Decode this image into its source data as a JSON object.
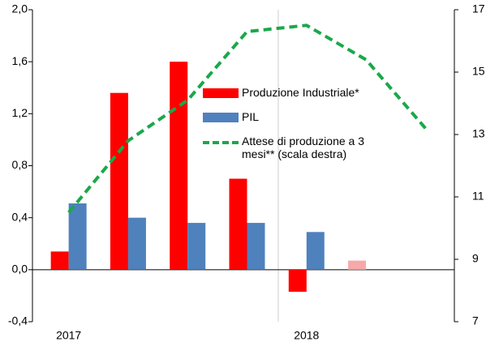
{
  "chart_data": {
    "type": "bar",
    "categories": [
      "2017",
      null,
      null,
      null,
      "2018",
      null,
      null
    ],
    "series": [
      {
        "name": "Produzione Industriale*",
        "color": "#ff0000",
        "colors": [
          "#ff0000",
          "#ff0000",
          "#ff0000",
          "#ff0000",
          "#ff0000",
          "#f7a9a9",
          null
        ],
        "values": [
          0.14,
          1.36,
          1.6,
          0.7,
          -0.17,
          0.07,
          null
        ]
      },
      {
        "name": "PIL",
        "color": "#4f81bd",
        "values": [
          0.51,
          0.4,
          0.36,
          0.36,
          0.29,
          null,
          null
        ]
      },
      {
        "name": "Attese di produzione  a 3 mesi** (scala destra)",
        "type": "line",
        "axis": "y2",
        "color": "#1aa84a",
        "dashed": true,
        "values": [
          10.5,
          12.8,
          14.1,
          16.3,
          16.5,
          15.4,
          13.2
        ]
      }
    ],
    "ylim": [
      -0.4,
      2.0
    ],
    "yticks": [
      {
        "value": -0.4,
        "label": "-0,4"
      },
      {
        "value": 0,
        "label": "0,0"
      },
      {
        "value": 0.4,
        "label": "0,4"
      },
      {
        "value": 0.8,
        "label": "0,8"
      },
      {
        "value": 1.2,
        "label": "1,2"
      },
      {
        "value": 1.6,
        "label": "1,6"
      },
      {
        "value": 2.0,
        "label": "2,0"
      }
    ],
    "y2lim": [
      7,
      17
    ],
    "y2ticks": [
      7,
      9,
      11,
      13,
      15,
      17
    ]
  }
}
